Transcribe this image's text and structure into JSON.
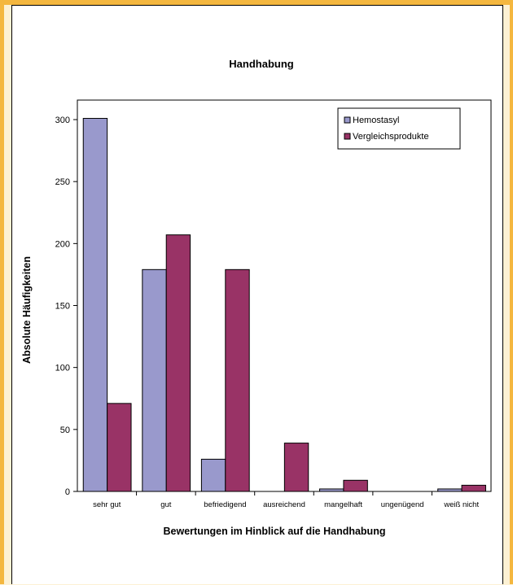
{
  "chart_data": {
    "type": "bar",
    "title": "Handhabung",
    "xlabel": "Bewertungen im Hinblick auf die Handhabung",
    "ylabel": "Absolute Häufigkeiten",
    "categories": [
      "sehr gut",
      "gut",
      "befriedigend",
      "ausreichend",
      "mangelhaft",
      "ungenügend",
      "weiß nicht"
    ],
    "series": [
      {
        "name": "Hemostasyl",
        "color": "#9999cc",
        "values": [
          301,
          179,
          26,
          0,
          2,
          0,
          2
        ]
      },
      {
        "name": "Vergleichsprodukte",
        "color": "#993366",
        "values": [
          71,
          207,
          179,
          39,
          9,
          0,
          5
        ]
      }
    ],
    "ylim": [
      0,
      300
    ],
    "yticks": [
      0,
      50,
      100,
      150,
      200,
      250,
      300
    ],
    "grid": false,
    "legend_position": "top-right"
  },
  "colors": {
    "page_background": "#fdf1d3",
    "frame_border": "#f4b73f",
    "panel_background": "#ffffff"
  }
}
